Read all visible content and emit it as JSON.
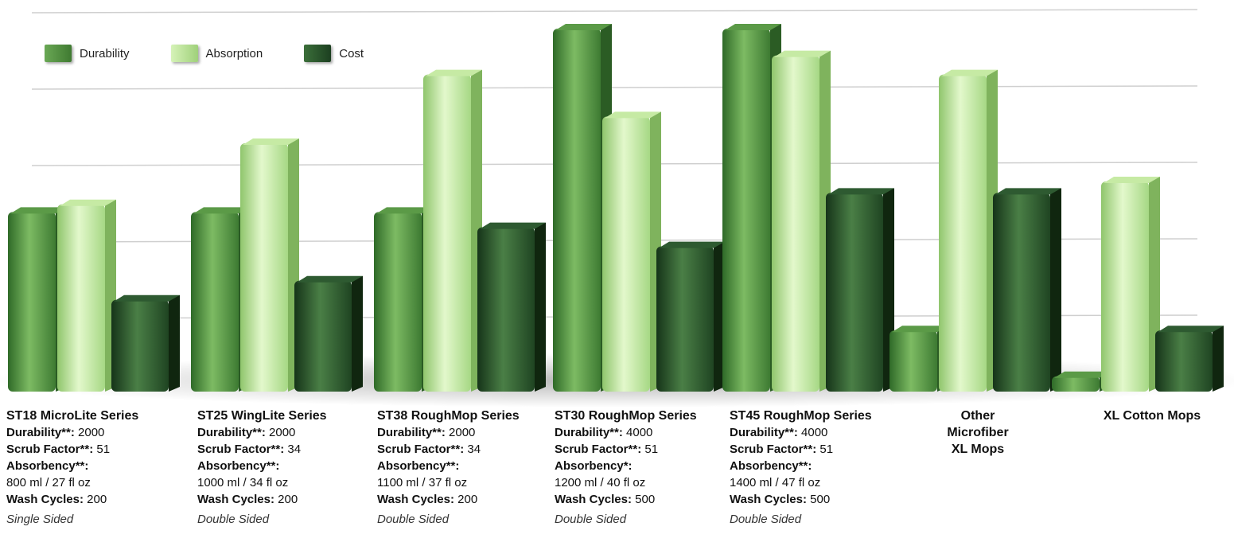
{
  "chart_data": {
    "type": "bar",
    "categories": [
      "ST18 MicroLite Series",
      "ST25 WingLite Series",
      "ST38 RoughMop Series",
      "ST30 RoughMop Series",
      "ST45 RoughMop Series",
      "Other Microfiber XL Mops",
      "XL Cotton Mops"
    ],
    "series": [
      {
        "name": "Durability",
        "values": [
          47,
          47,
          47,
          95,
          95,
          16,
          4
        ]
      },
      {
        "name": "Absorption",
        "values": [
          49,
          65,
          83,
          72,
          88,
          83,
          55
        ]
      },
      {
        "name": "Cost",
        "values": [
          24,
          29,
          43,
          38,
          52,
          52,
          16
        ]
      }
    ],
    "ylim": [
      0,
      100
    ],
    "grid": true,
    "legend": "top-left",
    "colors": {
      "Durability": "#4d8f3c",
      "Absorption": "#b4e08e",
      "Cost": "#25502a",
      "gridline": "#cfcfcf"
    }
  },
  "legend": {
    "durability": "Durability",
    "absorption": "Absorption",
    "cost": "Cost"
  },
  "products": [
    {
      "name": "ST18 MicroLite Series",
      "durability_key": "Durability**:",
      "durability_val": " 2000",
      "scrub_key": "Scrub Factor**:",
      "scrub_val": " 51",
      "absorbency_key": "Absorbency**:",
      "absorbency_val": "800 ml / 27 fl oz",
      "wash_key": "Wash Cycles:",
      "wash_val": " 200",
      "note": "Single Sided"
    },
    {
      "name": "ST25 WingLite Series",
      "durability_key": "Durability**:",
      "durability_val": " 2000",
      "scrub_key": "Scrub Factor**:",
      "scrub_val": " 34",
      "absorbency_key": "Absorbency**:",
      "absorbency_val": "1000 ml / 34 fl oz",
      "wash_key": "Wash Cycles:",
      "wash_val": " 200",
      "note": "Double Sided"
    },
    {
      "name": "ST38 RoughMop Series",
      "durability_key": "Durability**:",
      "durability_val": " 2000",
      "scrub_key": "Scrub Factor**:",
      "scrub_val": " 34",
      "absorbency_key": "Absorbency**:",
      "absorbency_val": "1100 ml / 37 fl oz",
      "wash_key": "Wash Cycles:",
      "wash_val": " 200",
      "note": "Double Sided"
    },
    {
      "name": "ST30 RoughMop Series",
      "durability_key": "Durability**:",
      "durability_val": " 4000",
      "scrub_key": "Scrub Factor**:",
      "scrub_val": " 51",
      "absorbency_key": "Absorbency*:",
      "absorbency_val": "1200 ml / 40 fl oz",
      "wash_key": "Wash Cycles:",
      "wash_val": " 500",
      "note": "Double Sided"
    },
    {
      "name": "ST45 RoughMop Series",
      "durability_key": "Durability**:",
      "durability_val": " 4000",
      "scrub_key": "Scrub Factor**:",
      "scrub_val": " 51",
      "absorbency_key": "Absorbency**:",
      "absorbency_val": "1400 ml / 47 fl oz",
      "wash_key": "Wash Cycles:",
      "wash_val": " 500",
      "note": "Double Sided"
    }
  ],
  "others": [
    {
      "line1": "Other",
      "line2": "Microfiber",
      "line3": "XL Mops"
    },
    {
      "line1": "XL Cotton Mops"
    }
  ]
}
